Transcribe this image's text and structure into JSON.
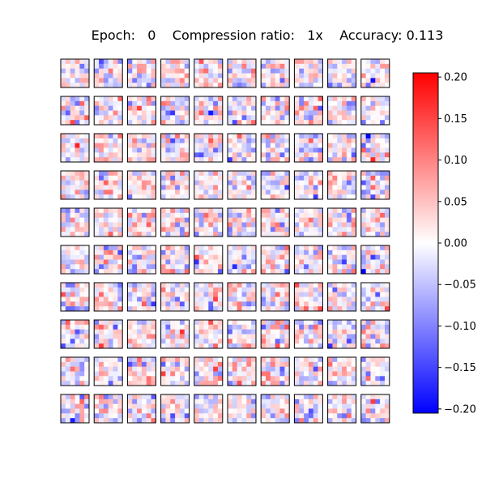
{
  "title": "Epoch:   0    Compression ratio:   1x    Accuracy: 0.113",
  "chart_data": {
    "type": "heatmap",
    "title": "Epoch:   0    Compression ratio:   1x    Accuracy: 0.113",
    "grid_rows": 10,
    "grid_cols": 10,
    "kernel_size": 6,
    "colormap": "bwr",
    "vmin": -0.205,
    "vmax": 0.205,
    "colorbar": {
      "ticks": [
        0.2,
        0.15,
        0.1,
        0.05,
        0.0,
        -0.05,
        -0.1,
        -0.15,
        -0.2
      ],
      "tick_labels": [
        "0.20",
        "0.15",
        "0.10",
        "0.05",
        "0.00",
        "−0.05",
        "−0.10",
        "−0.15",
        "−0.20"
      ]
    },
    "colors": {
      "high": "#ff0000",
      "mid": "#ffffff",
      "low": "#0000ff"
    }
  }
}
